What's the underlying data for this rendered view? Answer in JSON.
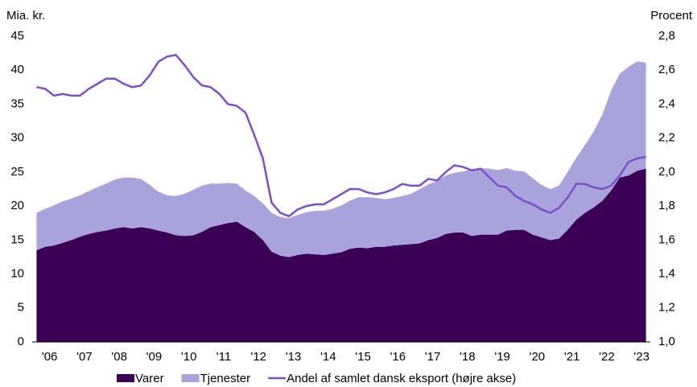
{
  "chart_data": {
    "type": "stacked-area-line",
    "ylabel": "Mia. kr.",
    "y2label": "Procent",
    "x": [
      2006.125,
      2006.375,
      2006.625,
      2006.875,
      2007.125,
      2007.375,
      2007.625,
      2007.875,
      2008.125,
      2008.375,
      2008.625,
      2008.875,
      2009.125,
      2009.375,
      2009.625,
      2009.875,
      2010.125,
      2010.375,
      2010.625,
      2010.875,
      2011.125,
      2011.375,
      2011.625,
      2011.875,
      2012.125,
      2012.375,
      2012.625,
      2012.875,
      2013.125,
      2013.375,
      2013.625,
      2013.875,
      2014.125,
      2014.375,
      2014.625,
      2014.875,
      2015.125,
      2015.375,
      2015.625,
      2015.875,
      2016.125,
      2016.375,
      2016.625,
      2016.875,
      2017.125,
      2017.375,
      2017.625,
      2017.875,
      2018.125,
      2018.375,
      2018.625,
      2018.875,
      2019.125,
      2019.375,
      2019.625,
      2019.875,
      2020.125,
      2020.375,
      2020.625,
      2020.875,
      2021.125,
      2021.375,
      2021.625,
      2021.875,
      2022.125,
      2022.375,
      2022.625,
      2022.875,
      2023.125,
      2023.375,
      2023.625
    ],
    "series": [
      {
        "name": "Varer",
        "color": "#3b0055",
        "values": [
          13.5,
          14,
          14.2,
          14.6,
          15,
          15.5,
          15.9,
          16.2,
          16.4,
          16.7,
          16.9,
          16.7,
          16.9,
          16.7,
          16.4,
          16.1,
          15.7,
          15.6,
          15.7,
          16.2,
          16.9,
          17.2,
          17.5,
          17.7,
          16.9,
          16.2,
          15,
          13.3,
          12.7,
          12.5,
          12.8,
          13,
          12.9,
          12.8,
          13,
          13.2,
          13.7,
          13.9,
          13.8,
          14,
          14,
          14.2,
          14.3,
          14.4,
          14.5,
          15,
          15.3,
          15.9,
          16.1,
          16.1,
          15.6,
          15.8,
          15.8,
          15.8,
          16.4,
          16.5,
          16.5,
          15.8,
          15.4,
          15,
          15.2,
          16.5,
          18,
          19,
          19.8,
          20.8,
          22.3,
          24.2,
          24.5,
          25.2,
          25.5
        ]
      },
      {
        "name": "Tjenester",
        "color": "#a9a3dc",
        "values": [
          5.5,
          5.6,
          5.9,
          6.1,
          6.1,
          6.1,
          6.3,
          6.6,
          6.9,
          7.2,
          7.3,
          7.5,
          7.1,
          6.4,
          5.7,
          5.5,
          5.8,
          6.2,
          6.7,
          6.8,
          6.4,
          6.1,
          5.9,
          5.6,
          5.4,
          5.3,
          5.4,
          5.7,
          5.7,
          5.7,
          5.9,
          6.1,
          6.4,
          6.5,
          6.6,
          6.9,
          7.1,
          7.4,
          7.5,
          7.2,
          7,
          7,
          7.2,
          7.4,
          8,
          8.2,
          8.4,
          8.6,
          8.8,
          9,
          9.8,
          9.8,
          9.7,
          9.5,
          9.2,
          8.7,
          8.6,
          8.3,
          7.7,
          7.5,
          7.8,
          8.5,
          9.1,
          10,
          11.2,
          12.7,
          14.7,
          15.3,
          16,
          16.1,
          15.6
        ]
      },
      {
        "name": "Andel af samlet dansk eksport (højre akse)",
        "color": "#7b4fc9",
        "axis": "y2",
        "values": [
          2.5,
          2.49,
          2.45,
          2.46,
          2.45,
          2.45,
          2.49,
          2.52,
          2.55,
          2.55,
          2.52,
          2.5,
          2.51,
          2.57,
          2.65,
          2.68,
          2.69,
          2.63,
          2.56,
          2.51,
          2.5,
          2.46,
          2.4,
          2.39,
          2.35,
          2.22,
          2.08,
          1.82,
          1.76,
          1.74,
          1.78,
          1.8,
          1.81,
          1.81,
          1.84,
          1.87,
          1.9,
          1.9,
          1.88,
          1.87,
          1.88,
          1.9,
          1.93,
          1.92,
          1.92,
          1.96,
          1.95,
          2,
          2.04,
          2.03,
          2.01,
          2.02,
          1.97,
          1.92,
          1.91,
          1.86,
          1.83,
          1.81,
          1.78,
          1.76,
          1.79,
          1.85,
          1.93,
          1.93,
          1.91,
          1.9,
          1.92,
          1.98,
          2.06,
          2.08,
          2.09
        ]
      }
    ],
    "xlim": [
      2006,
      2023.75
    ],
    "xticks": [
      {
        "value": 2006.5,
        "label": "'06"
      },
      {
        "value": 2007.5,
        "label": "'07"
      },
      {
        "value": 2008.5,
        "label": "'08"
      },
      {
        "value": 2009.5,
        "label": "'09"
      },
      {
        "value": 2010.5,
        "label": "'10"
      },
      {
        "value": 2011.5,
        "label": "'11"
      },
      {
        "value": 2012.5,
        "label": "'12"
      },
      {
        "value": 2013.5,
        "label": "'13"
      },
      {
        "value": 2014.5,
        "label": "'14"
      },
      {
        "value": 2015.5,
        "label": "'15"
      },
      {
        "value": 2016.5,
        "label": "'16"
      },
      {
        "value": 2017.5,
        "label": "'17"
      },
      {
        "value": 2018.5,
        "label": "'18"
      },
      {
        "value": 2019.5,
        "label": "'19"
      },
      {
        "value": 2020.5,
        "label": "'20"
      },
      {
        "value": 2021.5,
        "label": "'21"
      },
      {
        "value": 2022.5,
        "label": "'22"
      },
      {
        "value": 2023.5,
        "label": "'23"
      }
    ],
    "ylim": [
      0,
      45
    ],
    "yticks": [
      0,
      5,
      10,
      15,
      20,
      25,
      30,
      35,
      40,
      45
    ],
    "y2lim": [
      1.0,
      2.8
    ],
    "y2ticks": [
      {
        "value": 1.0,
        "label": "1,0"
      },
      {
        "value": 1.2,
        "label": "1,2"
      },
      {
        "value": 1.4,
        "label": "1,4"
      },
      {
        "value": 1.6,
        "label": "1,6"
      },
      {
        "value": 1.8,
        "label": "1,8"
      },
      {
        "value": 2.0,
        "label": "2,0"
      },
      {
        "value": 2.2,
        "label": "2,2"
      },
      {
        "value": 2.4,
        "label": "2,4"
      },
      {
        "value": 2.6,
        "label": "2,6"
      },
      {
        "value": 2.8,
        "label": "2,8"
      }
    ],
    "legend": "bottom"
  }
}
